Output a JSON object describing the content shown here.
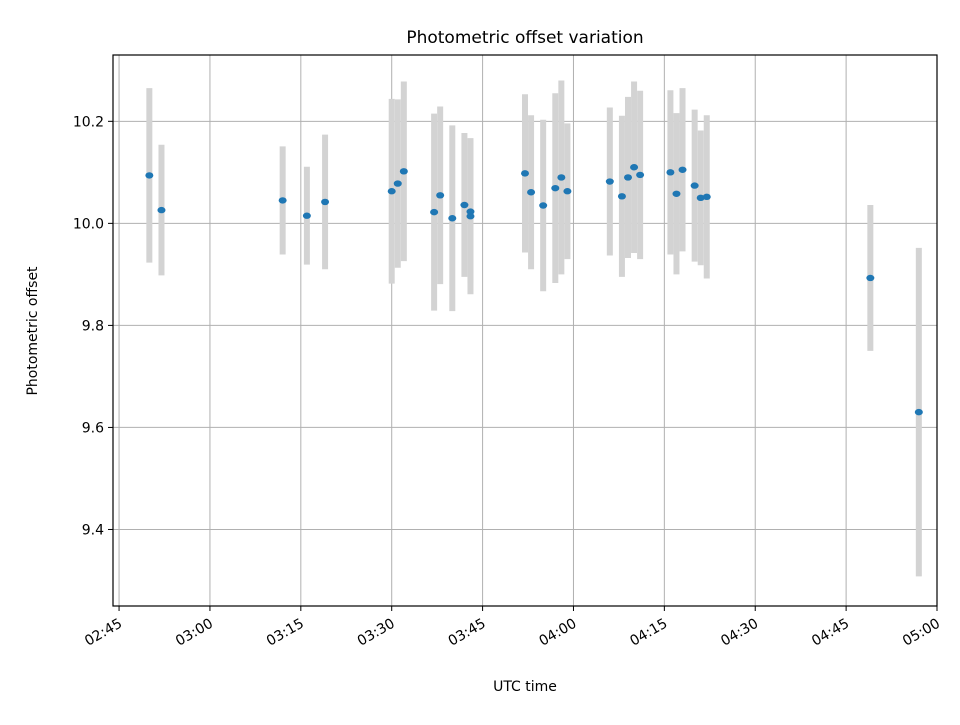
{
  "chart_data": {
    "type": "scatter",
    "title": "Photometric offset variation",
    "xlabel": "UTC time",
    "ylabel": "Photometric offset",
    "xlim": [
      "02:44",
      "05:00"
    ],
    "ylim": [
      9.25,
      10.33
    ],
    "grid": true,
    "colors": {
      "point": "#1f77b4",
      "errorbar": "#d3d3d3",
      "grid": "#b0b0b0"
    },
    "x_ticks": [
      "02:45",
      "03:00",
      "03:15",
      "03:30",
      "03:45",
      "04:00",
      "04:15",
      "04:30",
      "04:45",
      "05:00"
    ],
    "y_ticks": [
      9.4,
      9.6,
      9.8,
      10.0,
      10.2
    ],
    "y_tick_labels": [
      "9.4",
      "9.6",
      "9.8",
      "10.0",
      "10.2"
    ],
    "series": [
      {
        "points": [
          {
            "x": "02:50",
            "y": 10.094,
            "err": 0.171
          },
          {
            "x": "02:52",
            "y": 10.026,
            "err": 0.128
          },
          {
            "x": "03:12",
            "y": 10.045,
            "err": 0.106
          },
          {
            "x": "03:16",
            "y": 10.015,
            "err": 0.096
          },
          {
            "x": "03:19",
            "y": 10.042,
            "err": 0.132
          },
          {
            "x": "03:30",
            "y": 10.063,
            "err": 0.181
          },
          {
            "x": "03:31",
            "y": 10.078,
            "err": 0.165
          },
          {
            "x": "03:32",
            "y": 10.102,
            "err": 0.176
          },
          {
            "x": "03:37",
            "y": 10.022,
            "err": 0.193
          },
          {
            "x": "03:38",
            "y": 10.055,
            "err": 0.174
          },
          {
            "x": "03:40",
            "y": 10.01,
            "err": 0.182
          },
          {
            "x": "03:42",
            "y": 10.036,
            "err": 0.141
          },
          {
            "x": "03:43",
            "y": 10.023,
            "err": 0.14
          },
          {
            "x": "03:43",
            "y": 10.014,
            "err": 0.153
          },
          {
            "x": "03:52",
            "y": 10.098,
            "err": 0.155
          },
          {
            "x": "03:53",
            "y": 10.061,
            "err": 0.151
          },
          {
            "x": "03:55",
            "y": 10.035,
            "err": 0.168
          },
          {
            "x": "03:57",
            "y": 10.069,
            "err": 0.186
          },
          {
            "x": "03:58",
            "y": 10.09,
            "err": 0.19
          },
          {
            "x": "03:59",
            "y": 10.063,
            "err": 0.133
          },
          {
            "x": "04:06",
            "y": 10.082,
            "err": 0.145
          },
          {
            "x": "04:08",
            "y": 10.053,
            "err": 0.158
          },
          {
            "x": "04:09",
            "y": 10.09,
            "err": 0.158
          },
          {
            "x": "04:10",
            "y": 10.11,
            "err": 0.168
          },
          {
            "x": "04:11",
            "y": 10.095,
            "err": 0.165
          },
          {
            "x": "04:16",
            "y": 10.1,
            "err": 0.161
          },
          {
            "x": "04:17",
            "y": 10.058,
            "err": 0.158
          },
          {
            "x": "04:18",
            "y": 10.105,
            "err": 0.16
          },
          {
            "x": "04:20",
            "y": 10.074,
            "err": 0.149
          },
          {
            "x": "04:21",
            "y": 10.05,
            "err": 0.132
          },
          {
            "x": "04:22",
            "y": 10.052,
            "err": 0.16
          },
          {
            "x": "04:49",
            "y": 9.893,
            "err": 0.143
          },
          {
            "x": "04:57",
            "y": 9.63,
            "err": 0.322
          }
        ]
      }
    ]
  }
}
